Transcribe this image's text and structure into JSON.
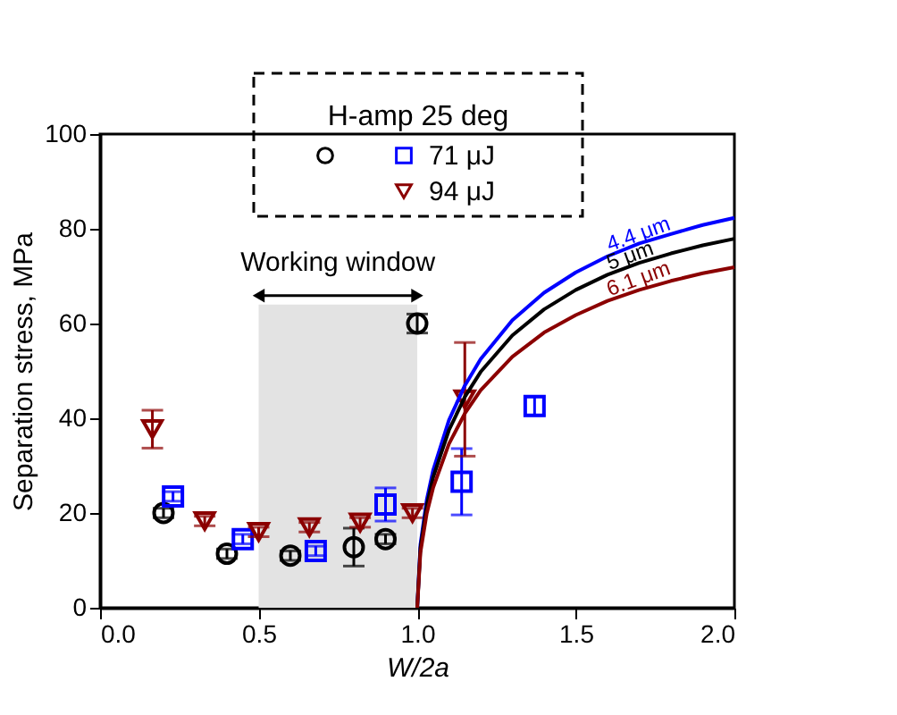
{
  "chart_data": {
    "type": "scatter",
    "xlabel": "W/2a",
    "ylabel": "Separation stress, MPa",
    "legend_title": "H-amp 25 deg",
    "legend": "top",
    "xlim": [
      0,
      2
    ],
    "ylim": [
      0,
      100
    ],
    "xticks": [
      {
        "value": 0,
        "label": "0.0"
      },
      0.5,
      {
        "value": 1,
        "label": "1.0"
      },
      1.5,
      {
        "value": 2,
        "label": "2.0"
      }
    ],
    "yticks": [
      0,
      20,
      40,
      60,
      80,
      100
    ],
    "grid": false,
    "bands": [
      {
        "axis": "x",
        "from": 0.5,
        "to": 1.0,
        "label": "Working window",
        "color": "#e3e3e3"
      }
    ],
    "series": [
      {
        "color": "#000000",
        "marker": "circle",
        "x": [
          0.2,
          0.4,
          0.6,
          0.8,
          0.9,
          1.0
        ],
        "values": [
          20,
          11.4,
          11,
          12.8,
          14.5,
          60
        ],
        "errors": [
          1,
          1,
          1,
          4,
          1,
          2
        ]
      },
      {
        "name": "71 μJ",
        "color": "#0000ff",
        "marker": "square",
        "x": [
          0.23,
          0.45,
          0.68,
          0.9,
          1.14,
          1.37
        ],
        "values": [
          23.5,
          14.5,
          12,
          21.8,
          26.6,
          42.6
        ],
        "errors": [
          1,
          1,
          1,
          3.5,
          7,
          2
        ]
      },
      {
        "name": "94 μJ",
        "color": "#8b0000",
        "marker": "triangle",
        "x": [
          0.165,
          0.33,
          0.5,
          0.66,
          0.82,
          0.985,
          1.15
        ],
        "values": [
          37.7,
          18.3,
          16,
          17,
          18,
          20,
          44
        ],
        "errors": [
          4,
          1,
          1,
          1,
          1,
          1,
          12
        ]
      },
      {
        "name": "4.4 μm",
        "type": "line",
        "marker": "none",
        "color": "#0000ff",
        "x": [
          1.0,
          1.01,
          1.03,
          1.05,
          1.1,
          1.15,
          1.2,
          1.3,
          1.4,
          1.5,
          1.6,
          1.7,
          1.8,
          1.9,
          2.0
        ],
        "values": [
          0,
          13.3,
          22.8,
          29,
          39.6,
          46.9,
          52.5,
          60.7,
          66.5,
          70.8,
          74.2,
          76.9,
          78.9,
          80.8,
          82.3
        ]
      },
      {
        "name": "5 μm",
        "type": "line",
        "marker": "none",
        "color": "#000000",
        "x": [
          1.0,
          1.01,
          1.03,
          1.05,
          1.1,
          1.15,
          1.2,
          1.3,
          1.4,
          1.5,
          1.6,
          1.7,
          1.8,
          1.9,
          2.0
        ],
        "values": [
          0,
          12.6,
          21.6,
          27.5,
          37.5,
          44.5,
          49.8,
          57.5,
          63,
          67.1,
          70.3,
          72.8,
          74.8,
          76.5,
          77.9
        ]
      },
      {
        "name": "6.1 μm",
        "type": "line",
        "marker": "none",
        "color": "#8b0000",
        "x": [
          1.0,
          1.01,
          1.03,
          1.05,
          1.1,
          1.15,
          1.2,
          1.3,
          1.4,
          1.5,
          1.6,
          1.7,
          1.8,
          1.9,
          2.0
        ],
        "values": [
          0,
          11.6,
          19.9,
          25.3,
          34.6,
          41,
          45.9,
          53,
          58.1,
          61.8,
          64.8,
          67.1,
          69,
          70.6,
          71.9
        ]
      }
    ]
  }
}
